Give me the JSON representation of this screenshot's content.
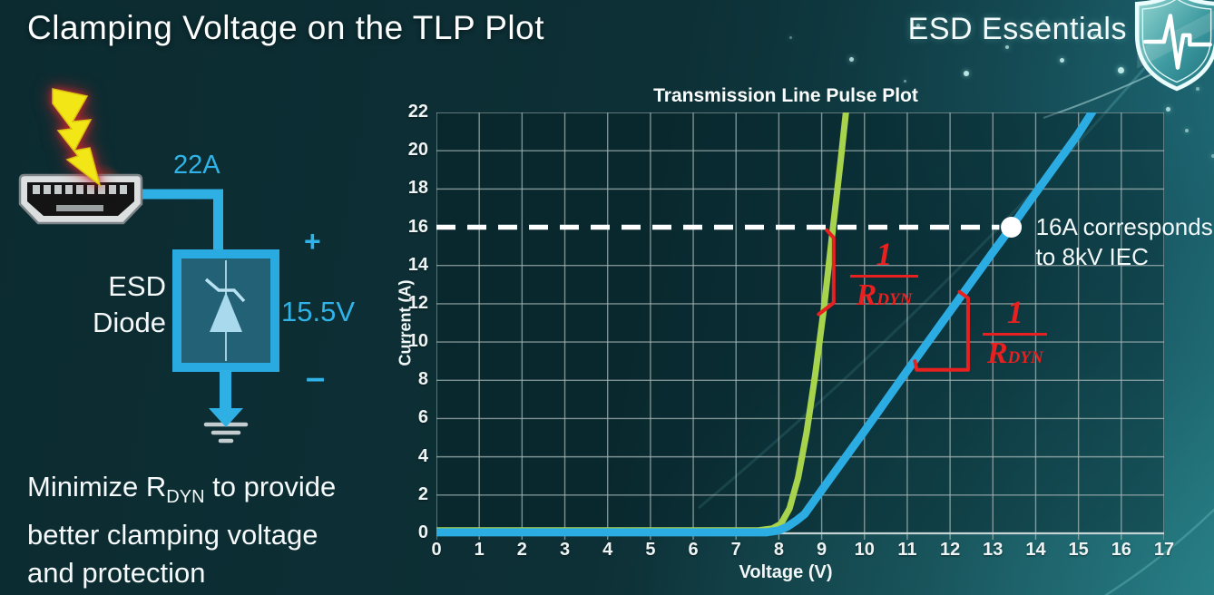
{
  "header": {
    "title": "Clamping Voltage on the TLP Plot",
    "brand": "ESD Essentials"
  },
  "diagram": {
    "surge_current": "22A",
    "device_line1": "ESD",
    "device_line2": "Diode",
    "plus": "+",
    "minus": "–",
    "clamp_voltage": "15.5V"
  },
  "note": {
    "line1_pre": "Minimize R",
    "line1_sub": "DYN",
    "line1_post": " to provide",
    "line2": "better clamping voltage",
    "line3": "and protection"
  },
  "chart_data": {
    "type": "line",
    "title": "Transmission Line Pulse Plot",
    "xlabel": "Voltage (V)",
    "ylabel": "Current (A)",
    "xlim": [
      0,
      17
    ],
    "ylim": [
      0,
      22
    ],
    "xtick_step": 1,
    "ytick_step": 2,
    "grid": true,
    "legend": "none",
    "series": [
      {
        "name": "low-rdyn-device-green",
        "color": "#a7d44c",
        "width": 7,
        "points": [
          [
            0,
            0.15
          ],
          [
            7.5,
            0.15
          ],
          [
            7.85,
            0.25
          ],
          [
            8.05,
            0.5
          ],
          [
            8.25,
            1.3
          ],
          [
            8.45,
            2.9
          ],
          [
            8.65,
            5.3
          ],
          [
            8.85,
            8.3
          ],
          [
            9.05,
            11.7
          ],
          [
            9.25,
            15.7
          ],
          [
            9.45,
            19.6
          ],
          [
            9.58,
            22.3
          ]
        ]
      },
      {
        "name": "high-rdyn-device-blue",
        "color": "#2bade3",
        "width": 9,
        "points": [
          [
            0,
            0.05
          ],
          [
            7.7,
            0.05
          ],
          [
            8.0,
            0.15
          ],
          [
            8.2,
            0.35
          ],
          [
            8.4,
            0.65
          ],
          [
            8.6,
            1.0
          ],
          [
            9.0,
            2.25
          ],
          [
            10,
            5.35
          ],
          [
            11,
            8.5
          ],
          [
            12,
            11.6
          ],
          [
            13,
            14.7
          ],
          [
            13.43,
            16
          ],
          [
            14,
            17.8
          ],
          [
            15,
            20.9
          ],
          [
            15.4,
            22.3
          ]
        ]
      }
    ],
    "reference_line": {
      "y": 16,
      "x_start": 0,
      "x_end": 13.15,
      "color": "#ffffff",
      "style": "dashed"
    },
    "marker": {
      "x": 13.43,
      "y": 16,
      "radius": 11.5,
      "color": "#ffffff",
      "label_line1": "16A corresponds",
      "label_line2": "to 8kV IEC"
    },
    "slope_annotations": [
      {
        "color": "#e8201f",
        "bracket": [
          [
            9.12,
            15.85
          ],
          [
            9.28,
            15.45
          ],
          [
            9.28,
            12.05
          ],
          [
            8.93,
            11.45
          ]
        ],
        "frac": {
          "x0": 9.67,
          "x1": 11.25,
          "bar_current": 13.5,
          "num": "1",
          "den_main": "R",
          "den_sub": "DYN"
        }
      },
      {
        "color": "#e8201f",
        "bracket": [
          [
            11.18,
            9.0
          ],
          [
            11.22,
            8.55
          ],
          [
            12.42,
            8.55
          ],
          [
            12.42,
            12.3
          ],
          [
            12.22,
            12.62
          ]
        ],
        "frac": {
          "x0": 12.77,
          "x1": 14.27,
          "bar_current": 10.5,
          "num": "1",
          "den_main": "R",
          "den_sub": "DYN"
        }
      }
    ]
  }
}
